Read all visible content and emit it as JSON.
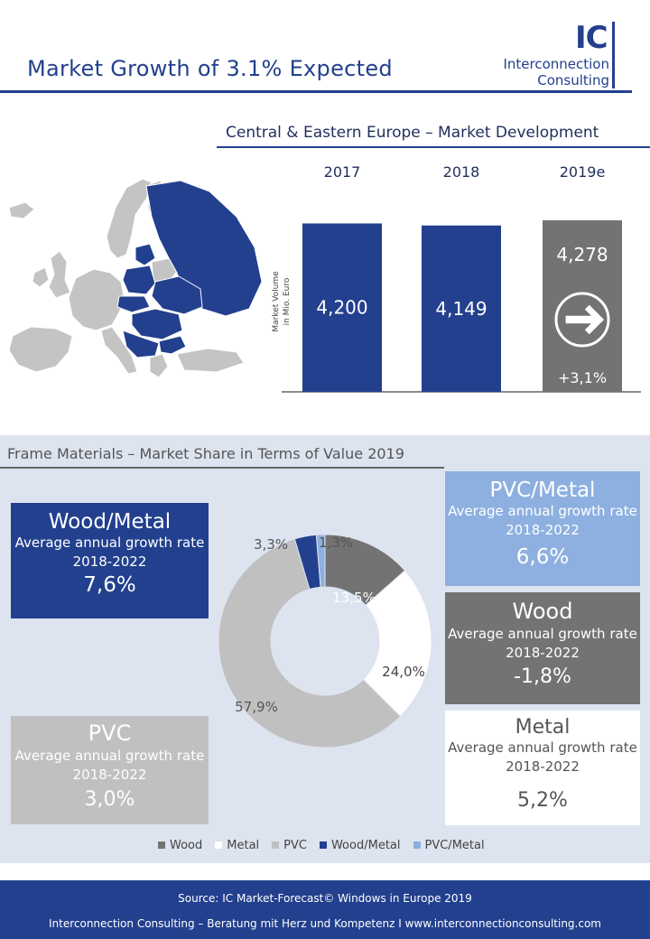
{
  "header": {
    "title": "Market Growth of 3.1% Expected",
    "logo_mark": "IC",
    "logo_line1": "Interconnection",
    "logo_line2": "Consulting"
  },
  "market_development": {
    "title": "Central & Eastern Europe – Market Development"
  },
  "frame_materials": {
    "title": "Frame Materials – Market Share in Terms of Value 2019",
    "boxes": {
      "wood_metal": {
        "title": "Wood/Metal",
        "desc": "Average annual growth rate 2018-2022",
        "value": "7,6%"
      },
      "pvc": {
        "title": "PVC",
        "desc": "Average annual growth rate 2018-2022",
        "value": "3,0%"
      },
      "pvc_metal": {
        "title": "PVC/Metal",
        "desc": "Average annual growth rate 2018-2022",
        "value": "6,6%"
      },
      "wood": {
        "title": "Wood",
        "desc": "Average annual growth rate 2018-2022",
        "value": "-1,8%"
      },
      "metal": {
        "title": "Metal",
        "desc": "Average annual growth rate 2018-2022",
        "value": "5,2%"
      }
    }
  },
  "footer": {
    "source": "Source: IC Market-Forecast© Windows in Europe 2019",
    "tagline": "Interconnection Consulting – Beratung mit Herz und Kompetenz  I  www.interconnectionconsulting.com"
  },
  "colors": {
    "navy": "#23408e",
    "grey_bar": "#737373",
    "wood": "#737373",
    "metal": "#ffffff",
    "pvc": "#c0c0c0",
    "wood_metal": "#23408e",
    "pvc_metal": "#8eb0e0",
    "panel": "#dde4f0"
  },
  "chart_data": [
    {
      "type": "bar",
      "categories": [
        "2017",
        "2018",
        "2019e"
      ],
      "values": [
        4200,
        4149,
        4278
      ],
      "value_labels": [
        "4,200",
        "4,149",
        "4,278"
      ],
      "ylabel": "Market Volume in Mio. Euro",
      "growth_label": "+3,1%",
      "colors": [
        "#23408e",
        "#23408e",
        "#737373"
      ]
    },
    {
      "type": "pie",
      "title": "Frame Materials – Market Share in Terms of Value 2019",
      "categories": [
        "Wood",
        "Metal",
        "PVC",
        "Wood/Metal",
        "PVC/Metal"
      ],
      "values": [
        13.5,
        24.0,
        57.9,
        3.3,
        1.3
      ],
      "value_labels": [
        "13,5%",
        "24,0%",
        "57,9%",
        "3,3%",
        "1,3%"
      ],
      "colors": [
        "#737373",
        "#ffffff",
        "#c0c0c0",
        "#23408e",
        "#8eb0e0"
      ],
      "legend": "bottom"
    }
  ]
}
